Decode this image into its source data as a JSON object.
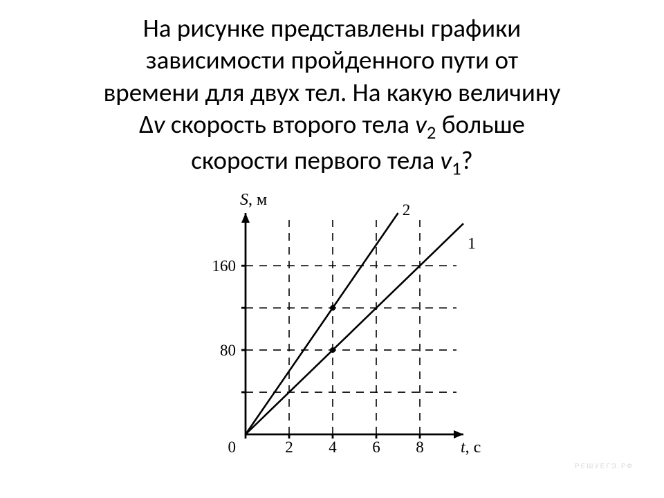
{
  "question": {
    "l1": "На рисунке представлены графики",
    "l2": "зависимости пройденного пути от",
    "l3": "времени для двух тел. На какую величину",
    "l4a": "Δ",
    "l4v": "v",
    "l4b": " скорость второго тела ",
    "l4v2": "v",
    "l4sub2": "2",
    "l4c": " больше",
    "l5a": "скорости первого тела ",
    "l5v": "v",
    "l5sub1": "1",
    "l5b": "?"
  },
  "chart": {
    "type": "line",
    "background_color": "#ffffff",
    "stroke_color": "#000000",
    "grid_dash": "11 9",
    "x": {
      "label_var": "t",
      "label_unit": ", с",
      "range": [
        0,
        10
      ],
      "ticks": [
        2,
        4,
        6,
        8
      ],
      "grid_at": [
        2,
        4,
        6,
        8
      ]
    },
    "y": {
      "label_var": "S",
      "label_unit": ", м",
      "range": [
        0,
        210
      ],
      "ticks": [
        80,
        160
      ],
      "grid_at": [
        40,
        80,
        120,
        160
      ]
    },
    "origin_label": "0",
    "series": [
      {
        "name": "1",
        "points": [
          [
            0,
            0
          ],
          [
            4,
            80
          ],
          [
            10,
            200
          ]
        ],
        "marker_at": [
          4,
          80
        ]
      },
      {
        "name": "2",
        "points": [
          [
            0,
            0
          ],
          [
            4,
            120
          ],
          [
            7,
            210
          ]
        ],
        "marker_at": [
          4,
          120
        ]
      }
    ],
    "series_label_pos": {
      "1": [
        10.2,
        180
      ],
      "2": [
        7.2,
        212
      ]
    },
    "marker_radius": 4
  },
  "watermark": "РЕШУЕГЭ.РФ"
}
